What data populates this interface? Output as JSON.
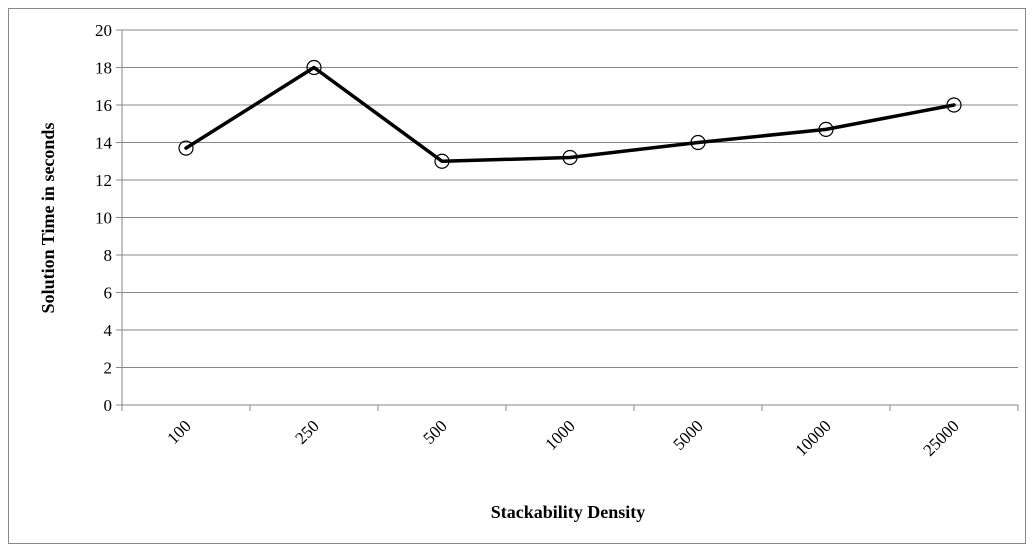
{
  "chart_data": {
    "type": "line",
    "title": "",
    "xlabel": "Stackability Density",
    "ylabel": "Solution Time in seconds",
    "categories": [
      "100",
      "250",
      "500",
      "1000",
      "5000",
      "10000",
      "25000"
    ],
    "series": [
      {
        "values": [
          13.7,
          18.0,
          13.0,
          13.2,
          14.0,
          14.7,
          16.0
        ]
      }
    ],
    "ylim": [
      0,
      20
    ],
    "yticks": [
      "0",
      "2",
      "4",
      "6",
      "8",
      "10",
      "12",
      "14",
      "16",
      "18",
      "20"
    ],
    "grid": true,
    "legend": "none",
    "marker": "open-circle",
    "line_color": "#000000",
    "grid_color": "#878787"
  }
}
